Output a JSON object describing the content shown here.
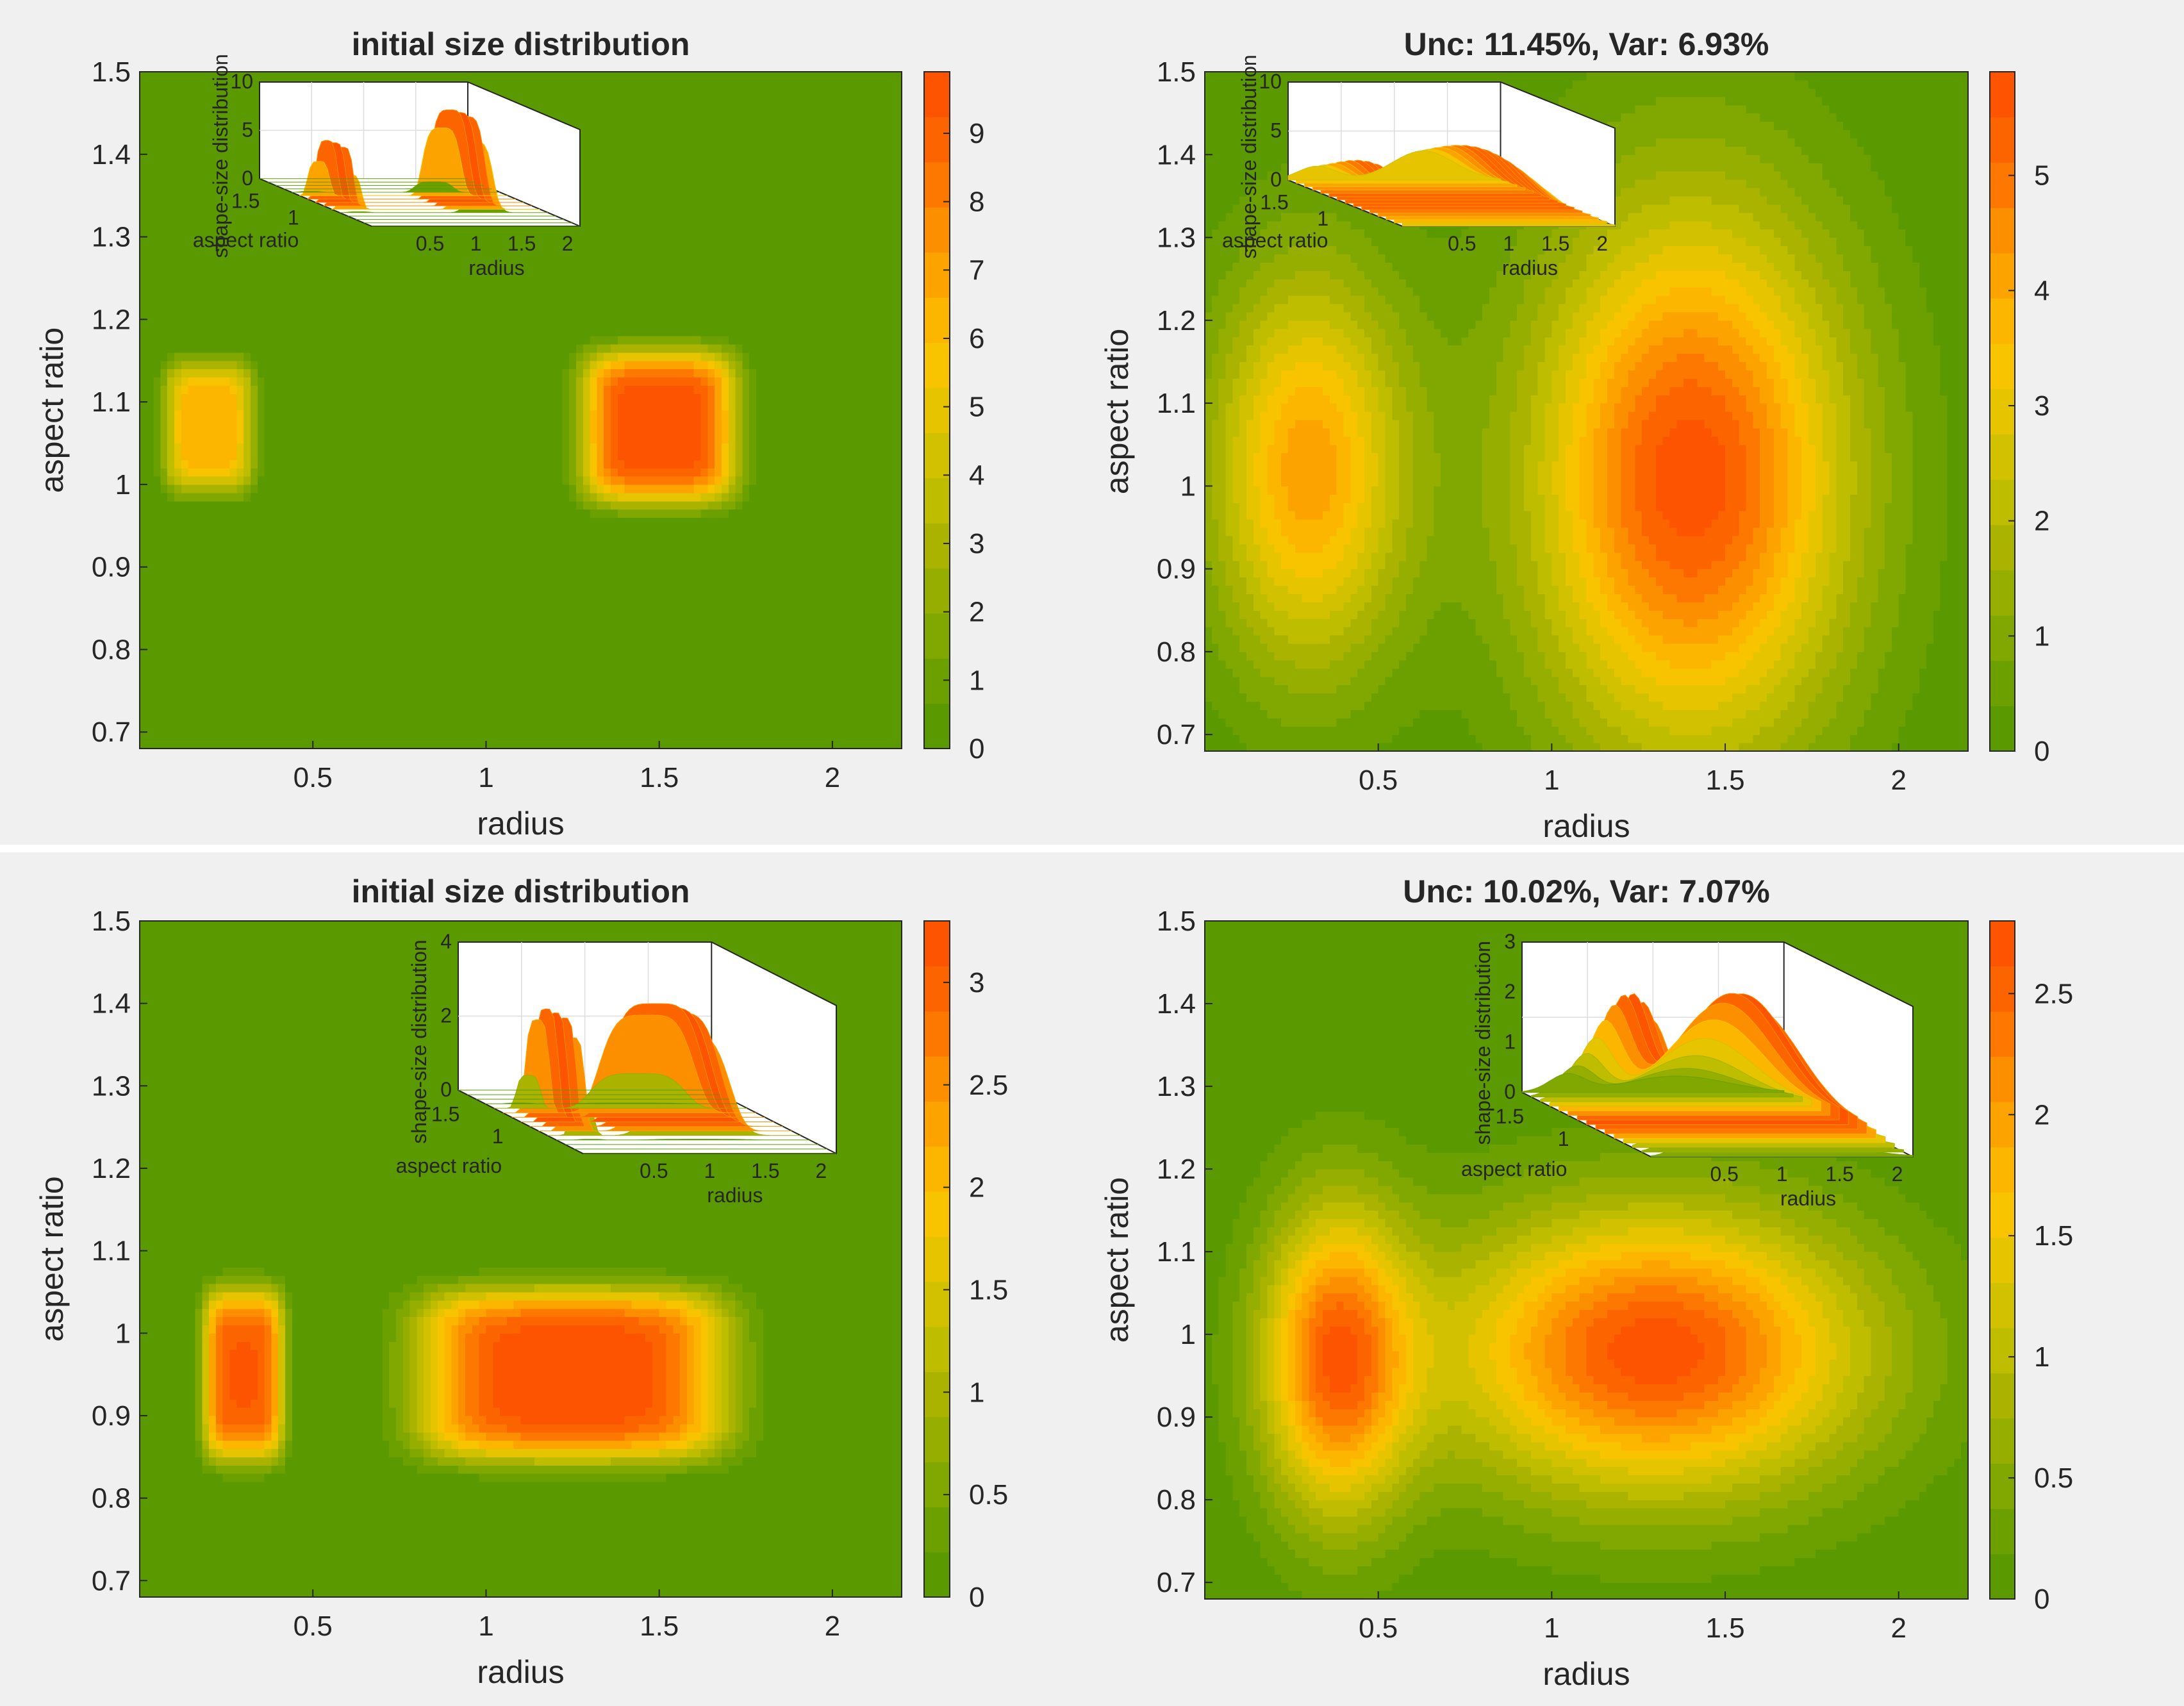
{
  "figure": {
    "background": "#f0f0f0",
    "divider": "#ffffff",
    "colormap": [
      "#5a9a00",
      "#6ba000",
      "#80a800",
      "#96ae00",
      "#aab400",
      "#bfbd00",
      "#d2c100",
      "#e6c400",
      "#f8c400",
      "#fcb600",
      "#fca300",
      "#fc8f00",
      "#fc7800",
      "#fc6400",
      "#fc5400"
    ]
  },
  "chart_data": [
    {
      "type": "contour",
      "title": "initial size distribution",
      "xlabel": "radius",
      "ylabel": "aspect ratio",
      "xlim": [
        0.0,
        2.2
      ],
      "ylim": [
        0.68,
        1.5
      ],
      "xticks": [
        0.5,
        1,
        1.5,
        2
      ],
      "xtick_labels": [
        "0.5",
        "1",
        "1.5",
        "2"
      ],
      "yticks": [
        0.7,
        0.8,
        0.9,
        1.0,
        1.1,
        1.2,
        1.3,
        1.4,
        1.5
      ],
      "ytick_labels": [
        "0.7",
        "0.8",
        "0.9",
        "1",
        "1.1",
        "1.2",
        "1.3",
        "1.4",
        "1.5"
      ],
      "colorbar": {
        "max": 9.9,
        "ticks": [
          0,
          1,
          2,
          3,
          4,
          5,
          6,
          7,
          8,
          9
        ],
        "tick_labels": [
          "0",
          "1",
          "2",
          "3",
          "4",
          "5",
          "6",
          "7",
          "8",
          "9"
        ]
      },
      "peaks": [
        {
          "r": 0.2,
          "ar": 1.07,
          "height": 6.5,
          "sr": 0.11,
          "sa": 0.07,
          "shape": "box"
        },
        {
          "r": 1.5,
          "ar": 1.07,
          "height": 9.8,
          "sr": 0.19,
          "sa": 0.08,
          "shape": "box"
        }
      ],
      "inset": {
        "zlabel": "shape-size distribution",
        "xlabel": "radius",
        "ylabel": "aspect ratio",
        "zticks": [
          "0",
          "5",
          "10"
        ],
        "zmax": 10,
        "rticks": [
          "0.5",
          "1",
          "1.5",
          "2"
        ],
        "aticks": [
          "1.5",
          "1"
        ]
      }
    },
    {
      "type": "contour",
      "title": "Unc: 11.45%, Var: 6.93%",
      "xlabel": "radius",
      "ylabel": "aspect ratio",
      "xlim": [
        0.0,
        2.2
      ],
      "ylim": [
        0.68,
        1.5
      ],
      "xticks": [
        0.5,
        1,
        1.5,
        2
      ],
      "xtick_labels": [
        "0.5",
        "1",
        "1.5",
        "2"
      ],
      "yticks": [
        0.7,
        0.8,
        0.9,
        1.0,
        1.1,
        1.2,
        1.3,
        1.4,
        1.5
      ],
      "ytick_labels": [
        "0.7",
        "0.8",
        "0.9",
        "1",
        "1.1",
        "1.2",
        "1.3",
        "1.4",
        "1.5"
      ],
      "colorbar": {
        "max": 5.9,
        "ticks": [
          0,
          1,
          2,
          3,
          4,
          5
        ],
        "tick_labels": [
          "0",
          "1",
          "2",
          "3",
          "4",
          "5"
        ]
      },
      "peaks": [
        {
          "r": 0.3,
          "ar": 1.02,
          "height": 4.2,
          "sr": 0.2,
          "sa": 0.17,
          "shape": "gauss"
        },
        {
          "r": 1.4,
          "ar": 1.01,
          "height": 5.8,
          "sr": 0.32,
          "sa": 0.23,
          "shape": "gauss"
        }
      ],
      "inset": {
        "zlabel": "shape-size distribution",
        "xlabel": "radius",
        "ylabel": "aspect ratio",
        "zticks": [
          "0",
          "5",
          "10"
        ],
        "zmax": 10,
        "rticks": [
          "0.5",
          "1",
          "1.5",
          "2"
        ],
        "aticks": [
          "1.5",
          "1"
        ]
      }
    },
    {
      "type": "contour",
      "title": "initial size distribution",
      "xlabel": "radius",
      "ylabel": "aspect ratio",
      "xlim": [
        0.0,
        2.2
      ],
      "ylim": [
        0.68,
        1.5
      ],
      "xticks": [
        0.5,
        1,
        1.5,
        2
      ],
      "xtick_labels": [
        "0.5",
        "1",
        "1.5",
        "2"
      ],
      "yticks": [
        0.7,
        0.8,
        0.9,
        1.0,
        1.1,
        1.2,
        1.3,
        1.4,
        1.5
      ],
      "ytick_labels": [
        "0.7",
        "0.8",
        "0.9",
        "1",
        "1.1",
        "1.2",
        "1.3",
        "1.4",
        "1.5"
      ],
      "colorbar": {
        "max": 3.3,
        "ticks": [
          0,
          0.5,
          1,
          1.5,
          2,
          2.5,
          3
        ],
        "tick_labels": [
          "0",
          "0.5",
          "1",
          "1.5",
          "2",
          "2.5",
          "3"
        ]
      },
      "peaks": [
        {
          "r": 0.3,
          "ar": 0.95,
          "height": 3.1,
          "sr": 0.1,
          "sa": 0.09,
          "shape": "box"
        },
        {
          "r": 1.25,
          "ar": 0.95,
          "height": 3.25,
          "sr": 0.38,
          "sa": 0.09,
          "shape": "box"
        }
      ],
      "inset": {
        "zlabel": "shape-size distribution",
        "xlabel": "radius",
        "ylabel": "aspect ratio",
        "zticks": [
          "0",
          "2",
          "4"
        ],
        "zmax": 4,
        "rticks": [
          "0.5",
          "1",
          "1.5",
          "2"
        ],
        "aticks": [
          "1.5",
          "1"
        ]
      }
    },
    {
      "type": "contour",
      "title": "Unc: 10.02%, Var: 7.07%",
      "xlabel": "radius",
      "ylabel": "aspect ratio",
      "xlim": [
        0.0,
        2.2
      ],
      "ylim": [
        0.68,
        1.5
      ],
      "xticks": [
        0.5,
        1,
        1.5,
        2
      ],
      "xtick_labels": [
        "0.5",
        "1",
        "1.5",
        "2"
      ],
      "yticks": [
        0.7,
        0.8,
        0.9,
        1.0,
        1.1,
        1.2,
        1.3,
        1.4,
        1.5
      ],
      "ytick_labels": [
        "0.7",
        "0.8",
        "0.9",
        "1",
        "1.1",
        "1.2",
        "1.3",
        "1.4",
        "1.5"
      ],
      "colorbar": {
        "max": 2.8,
        "ticks": [
          0,
          0.5,
          1,
          1.5,
          2,
          2.5
        ],
        "tick_labels": [
          "0",
          "0.5",
          "1",
          "1.5",
          "2",
          "2.5"
        ]
      },
      "peaks": [
        {
          "r": 0.38,
          "ar": 0.97,
          "height": 2.5,
          "sr": 0.15,
          "sa": 0.13,
          "shape": "gauss"
        },
        {
          "r": 1.3,
          "ar": 0.98,
          "height": 2.75,
          "sr": 0.42,
          "sa": 0.12,
          "shape": "gauss"
        }
      ],
      "inset": {
        "zlabel": "shape-size distribution",
        "xlabel": "radius",
        "ylabel": "aspect ratio",
        "zticks": [
          "0",
          "1",
          "2",
          "3"
        ],
        "zmax": 3,
        "rticks": [
          "0.5",
          "1",
          "1.5",
          "2"
        ],
        "aticks": [
          "1.5",
          "1"
        ]
      }
    }
  ]
}
